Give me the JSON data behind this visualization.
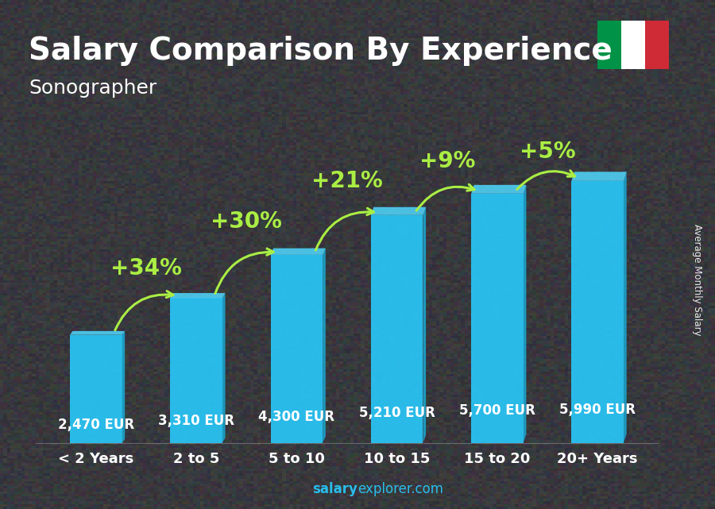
{
  "title": "Salary Comparison By Experience",
  "subtitle": "Sonographer",
  "categories": [
    "< 2 Years",
    "2 to 5",
    "5 to 10",
    "10 to 15",
    "15 to 20",
    "20+ Years"
  ],
  "values": [
    2470,
    3310,
    4300,
    5210,
    5700,
    5990
  ],
  "labels": [
    "2,470 EUR",
    "3,310 EUR",
    "4,300 EUR",
    "5,210 EUR",
    "5,700 EUR",
    "5,990 EUR"
  ],
  "pct_labels": [
    "+34%",
    "+30%",
    "+21%",
    "+9%",
    "+5%"
  ],
  "bar_color": "#29c5f6",
  "bar_side_color": "#1aaad4",
  "bar_top_color": "#50d8ff",
  "text_color": "#ffffff",
  "pct_color": "#aaee44",
  "ylabel": "Average Monthly Salary",
  "watermark_bold": "salary",
  "watermark_normal": "explorer.com",
  "title_fontsize": 28,
  "subtitle_fontsize": 18,
  "label_fontsize": 12,
  "cat_fontsize": 13,
  "pct_fontsize": 20,
  "flag_green": "#009246",
  "flag_white": "#ffffff",
  "flag_red": "#ce2b37",
  "ylim": 7800
}
